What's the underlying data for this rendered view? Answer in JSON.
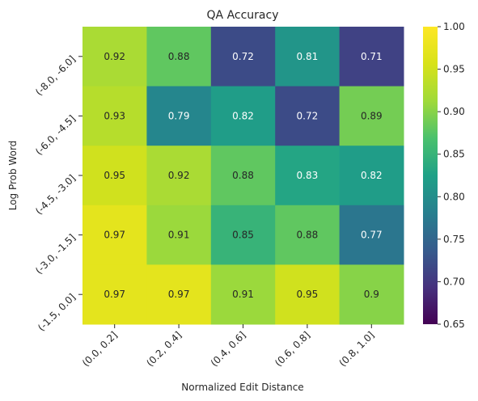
{
  "chart_data": {
    "type": "heatmap",
    "title": "QA Accuracy",
    "xlabel": "Normalized Edit Distance",
    "ylabel": "Log Prob Word",
    "x_categories": [
      "(0.0, 0.2]",
      "(0.2, 0.4]",
      "(0.4, 0.6]",
      "(0.6, 0.8]",
      "(0.8, 1.0]"
    ],
    "y_categories": [
      "(-8.0, -6.0]",
      "(-6.0, -4.5]",
      "(-4.5, -3.0]",
      "(-3.0, -1.5]",
      "(-1.5, 0.0]"
    ],
    "values": [
      [
        0.92,
        0.88,
        0.72,
        0.81,
        0.71
      ],
      [
        0.93,
        0.79,
        0.82,
        0.72,
        0.89
      ],
      [
        0.95,
        0.92,
        0.88,
        0.83,
        0.82
      ],
      [
        0.97,
        0.91,
        0.85,
        0.88,
        0.77
      ],
      [
        0.97,
        0.97,
        0.91,
        0.95,
        0.9
      ]
    ],
    "cell_labels": [
      [
        "0.92",
        "0.88",
        "0.72",
        "0.81",
        "0.71"
      ],
      [
        "0.93",
        "0.79",
        "0.82",
        "0.72",
        "0.89"
      ],
      [
        "0.95",
        "0.92",
        "0.88",
        "0.83",
        "0.82"
      ],
      [
        "0.97",
        "0.91",
        "0.85",
        "0.88",
        "0.77"
      ],
      [
        "0.97",
        "0.97",
        "0.91",
        "0.95",
        "0.9"
      ]
    ],
    "colormap": "viridis",
    "colorbar": {
      "vmin": 0.65,
      "vmax": 1.0,
      "ticks": [
        0.65,
        0.7,
        0.75,
        0.8,
        0.85,
        0.9,
        0.95,
        1.0
      ],
      "tick_labels": [
        "0.65",
        "0.70",
        "0.75",
        "0.80",
        "0.85",
        "0.90",
        "0.95",
        "1.00"
      ]
    }
  }
}
